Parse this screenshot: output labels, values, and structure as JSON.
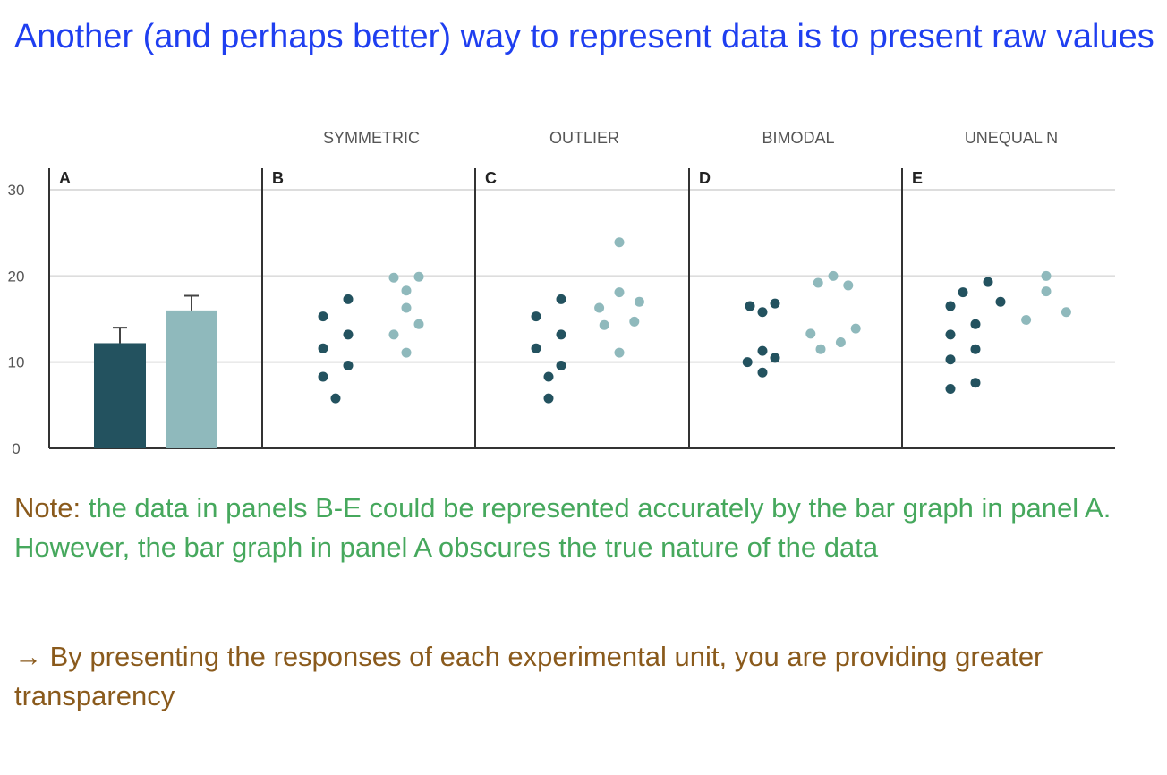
{
  "title": "Another (and perhaps better) way to represent data is to present raw values",
  "note": {
    "label": "Note:",
    "text": " the data in panels B-E could be represented accurately by the bar graph in panel A. However, the bar graph in panel A obscures the true nature of the data"
  },
  "conclusion": "→ By presenting the responses of each experimental unit, you are providing greater transparency",
  "colors": {
    "dark": "#23525f",
    "light": "#8fb9bc",
    "grid": "#dddddd",
    "axis": "#333333"
  },
  "chart_data": {
    "type": "scatter",
    "ylim": [
      0,
      30
    ],
    "yticks": [
      "0",
      "10",
      "20",
      "30"
    ],
    "panels": [
      {
        "letter": "A",
        "header": "",
        "type": "bar",
        "bars": [
          {
            "group": "dark",
            "value": 12.2,
            "error": 1.8
          },
          {
            "group": "light",
            "value": 16.0,
            "error": 1.7
          }
        ]
      },
      {
        "letter": "B",
        "header": "SYMMETRIC",
        "type": "scatter",
        "dark": [
          [
            -0.5,
            15.3
          ],
          [
            0.5,
            17.3
          ],
          [
            -0.5,
            11.6
          ],
          [
            0.5,
            13.2
          ],
          [
            -0.5,
            8.3
          ],
          [
            0.5,
            9.6
          ],
          [
            0,
            5.8
          ]
        ],
        "light": [
          [
            -0.5,
            19.8
          ],
          [
            0.5,
            19.9
          ],
          [
            0,
            18.3
          ],
          [
            0,
            16.3
          ],
          [
            -0.5,
            13.2
          ],
          [
            0.5,
            14.4
          ],
          [
            0,
            11.1
          ]
        ]
      },
      {
        "letter": "C",
        "header": "OUTLIER",
        "type": "scatter",
        "dark": [
          [
            -0.5,
            15.3
          ],
          [
            0.5,
            17.3
          ],
          [
            -0.5,
            11.6
          ],
          [
            0.5,
            13.2
          ],
          [
            0,
            8.3
          ],
          [
            0.5,
            9.6
          ],
          [
            0,
            5.8
          ]
        ],
        "light": [
          [
            0,
            23.9
          ],
          [
            0,
            18.1
          ],
          [
            -0.8,
            16.3
          ],
          [
            0.8,
            17.0
          ],
          [
            -0.6,
            14.3
          ],
          [
            0.6,
            14.7
          ],
          [
            0,
            11.1
          ]
        ]
      },
      {
        "letter": "D",
        "header": "BIMODAL",
        "type": "scatter",
        "dark": [
          [
            -0.5,
            16.5
          ],
          [
            0,
            15.8
          ],
          [
            0.5,
            16.8
          ],
          [
            -0.6,
            10.0
          ],
          [
            0,
            11.3
          ],
          [
            0.5,
            10.5
          ],
          [
            0,
            8.8
          ]
        ],
        "light": [
          [
            -0.6,
            19.2
          ],
          [
            0,
            20.0
          ],
          [
            0.6,
            18.9
          ],
          [
            -0.9,
            13.3
          ],
          [
            0.9,
            13.9
          ],
          [
            -0.5,
            11.5
          ],
          [
            0.3,
            12.3
          ]
        ]
      },
      {
        "letter": "E",
        "header": "UNEQUAL N",
        "type": "scatter",
        "dark": [
          [
            -0.5,
            18.1
          ],
          [
            0.5,
            19.3
          ],
          [
            -1.0,
            16.5
          ],
          [
            1.0,
            17.0
          ],
          [
            0,
            14.4
          ],
          [
            -1.0,
            13.2
          ],
          [
            0,
            11.5
          ],
          [
            -1.0,
            10.3
          ],
          [
            0,
            7.6
          ],
          [
            -1.0,
            6.9
          ]
        ],
        "light": [
          [
            0,
            20.0
          ],
          [
            0,
            18.2
          ],
          [
            -0.8,
            14.9
          ],
          [
            0.8,
            15.8
          ]
        ]
      }
    ]
  }
}
